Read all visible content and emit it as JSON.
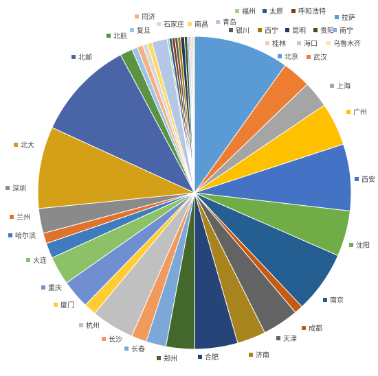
{
  "chart_data": {
    "type": "pie",
    "title": "",
    "start": "12 o'clock, clockwise",
    "legend": "labels around pie",
    "slices": [
      {
        "label": "北京",
        "value": 10.0,
        "color": "#5b9bd5"
      },
      {
        "label": "武汉",
        "value": 3.0,
        "color": "#ed7d31"
      },
      {
        "label": "上海",
        "value": 2.8,
        "color": "#a5a5a5"
      },
      {
        "label": "广州",
        "value": 4.5,
        "color": "#ffc000"
      },
      {
        "label": "西安",
        "value": 7.0,
        "color": "#4472c4"
      },
      {
        "label": "沈阳",
        "value": 4.8,
        "color": "#70ad47"
      },
      {
        "label": "南京",
        "value": 6.5,
        "color": "#255e91"
      },
      {
        "label": "成都",
        "value": 0.9,
        "color": "#c55a11"
      },
      {
        "label": "天津",
        "value": 3.8,
        "color": "#636363"
      },
      {
        "label": "济南",
        "value": 3.0,
        "color": "#a8841f"
      },
      {
        "label": "合肥",
        "value": 4.5,
        "color": "#264478"
      },
      {
        "label": "郑州",
        "value": 3.0,
        "color": "#43682b"
      },
      {
        "label": "长春",
        "value": 2.1,
        "color": "#7ba7d9"
      },
      {
        "label": "长沙",
        "value": 1.6,
        "color": "#f19a5e"
      },
      {
        "label": "杭州",
        "value": 4.5,
        "color": "#c0c0c0"
      },
      {
        "label": "厦门",
        "value": 1.3,
        "color": "#ffcd33"
      },
      {
        "label": "重庆",
        "value": 3.0,
        "color": "#6f8fd1"
      },
      {
        "label": "大连",
        "value": 3.0,
        "color": "#8cc168"
      },
      {
        "label": "哈尔滨",
        "value": 1.6,
        "color": "#3e7cbf"
      },
      {
        "label": "兰州",
        "value": 1.1,
        "color": "#e0712f"
      },
      {
        "label": "深圳",
        "value": 2.6,
        "color": "#8a8a8a"
      },
      {
        "label": "北大",
        "value": 8.6,
        "color": "#d4a017"
      },
      {
        "label": "北邮",
        "value": 10.5,
        "color": "#4a64a8"
      },
      {
        "label": "北航",
        "value": 1.3,
        "color": "#5a9344"
      },
      {
        "label": "复旦",
        "value": 0.6,
        "color": "#9dc3e6"
      },
      {
        "label": "同济",
        "value": 0.6,
        "color": "#f4b183"
      },
      {
        "label": "石家庄",
        "value": 0.5,
        "color": "#d9d9d9"
      },
      {
        "label": "南昌",
        "value": 0.5,
        "color": "#ffd966"
      },
      {
        "label": "青岛",
        "value": 1.6,
        "color": "#b4c7e7"
      },
      {
        "label": "福州",
        "value": 0.2,
        "color": "#a9d18e"
      },
      {
        "label": "太原",
        "value": 0.3,
        "color": "#2f5597"
      },
      {
        "label": "呼和浩特",
        "value": 0.3,
        "color": "#843c0c"
      },
      {
        "label": "银川",
        "value": 0.3,
        "color": "#595959"
      },
      {
        "label": "西宁",
        "value": 0.3,
        "color": "#a67c00"
      },
      {
        "label": "昆明",
        "value": 0.4,
        "color": "#1f3864"
      },
      {
        "label": "贵阳",
        "value": 0.3,
        "color": "#375623"
      },
      {
        "label": "拉萨",
        "value": 0.15,
        "color": "#5b9bd5"
      },
      {
        "label": "南宁",
        "value": 0.15,
        "color": "#8faadc"
      },
      {
        "label": "桂林",
        "value": 0.15,
        "color": "#f8cbad"
      },
      {
        "label": "海口",
        "value": 0.15,
        "color": "#c9c9c9"
      },
      {
        "label": "乌鲁木齐",
        "value": 0.15,
        "color": "#ffe699"
      }
    ]
  }
}
